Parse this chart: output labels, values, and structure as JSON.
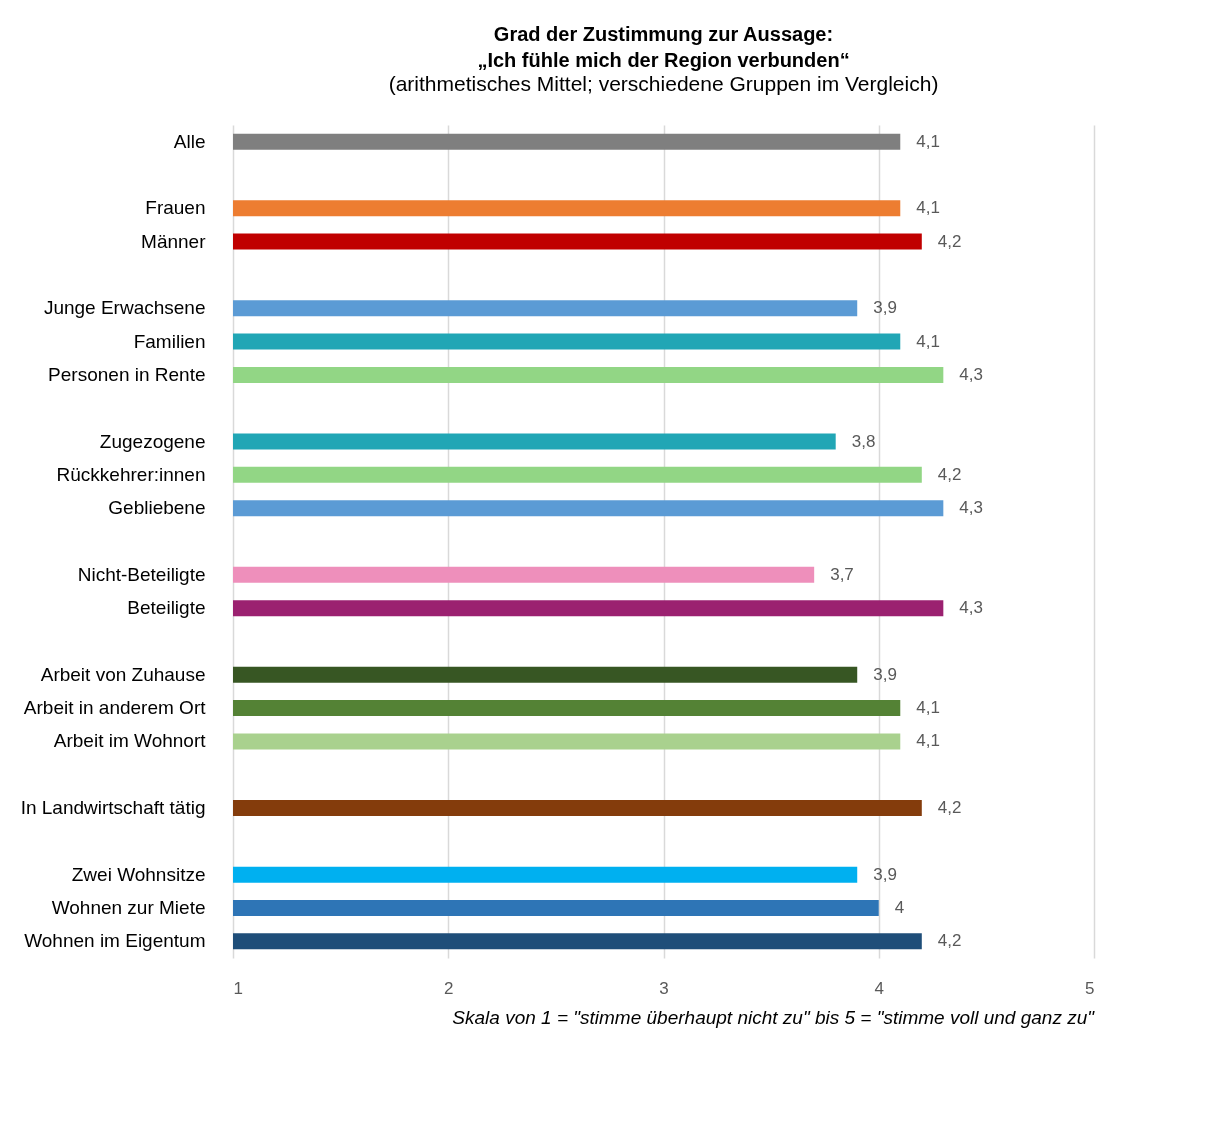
{
  "chart_data": {
    "type": "bar",
    "orientation": "horizontal",
    "title": "Grad der Zustimmung zur Aussage:\n„Ich fühle mich der Region verbunden“",
    "subtitle": "(arithmetisches Mittel; verschiedene Gruppen im Vergleich)",
    "categories": [
      "Alle",
      null,
      "Frauen",
      "Männer",
      null,
      "Junge Erwachsene",
      "Familien",
      "Personen in Rente",
      null,
      "Zugezogene",
      "Rückkehrer:innen",
      "Gebliebene",
      null,
      "Nicht-Beteiligte",
      "Beteiligte",
      null,
      "Arbeit von Zuhause",
      "Arbeit in anderem Ort",
      "Arbeit im Wohnort",
      null,
      "In Landwirtschaft tätig",
      null,
      "Zwei Wohnsitze",
      "Wohnen zur Miete",
      "Wohnen im Eigentum"
    ],
    "values": [
      4.1,
      null,
      4.1,
      4.2,
      null,
      3.9,
      4.1,
      4.3,
      null,
      3.8,
      4.2,
      4.3,
      null,
      3.7,
      4.3,
      null,
      3.9,
      4.1,
      4.1,
      null,
      4.2,
      null,
      3.9,
      4,
      4.2
    ],
    "value_labels": [
      "4,1",
      null,
      "4,1",
      "4,2",
      null,
      "3,9",
      "4,1",
      "4,3",
      null,
      "3,8",
      "4,2",
      "4,3",
      null,
      "3,7",
      "4,3",
      null,
      "3,9",
      "4,1",
      "4,1",
      null,
      "4,2",
      null,
      "3,9",
      "4",
      "4,2"
    ],
    "colors": [
      "#7f7f7f",
      null,
      "#ed7d31",
      "#c00000",
      null,
      "#5b9bd5",
      "#21a6b5",
      "#92d685",
      null,
      "#21a6b5",
      "#92d685",
      "#5b9bd5",
      null,
      "#ee8fbb",
      "#9b2170",
      null,
      "#375623",
      "#548235",
      "#a9d18e",
      null,
      "#843c0c",
      null,
      "#00b0f0",
      "#2e75b6",
      "#1f4e79"
    ],
    "xlim": [
      1,
      5
    ],
    "xticks": [
      1,
      2,
      3,
      4,
      5
    ],
    "grid": "x",
    "legend": false,
    "annotations": [
      "Skala von 1 = \"stimme überhaupt nicht zu\" bis 5 = \"stimme voll und ganz zu\""
    ]
  }
}
